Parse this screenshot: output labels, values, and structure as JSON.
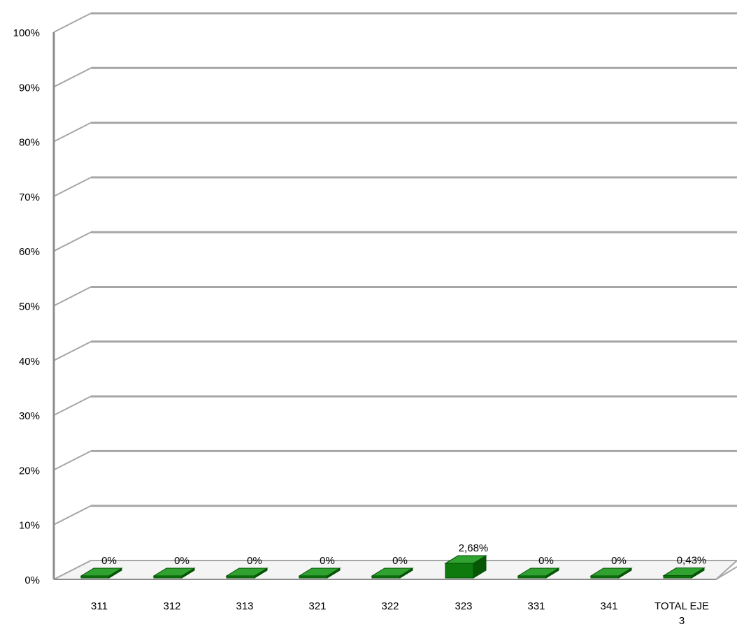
{
  "chart_data": {
    "type": "bar",
    "style": "3d",
    "categories": [
      "311",
      "312",
      "313",
      "321",
      "322",
      "323",
      "331",
      "341",
      "TOTAL EJE 3"
    ],
    "series": [
      {
        "values": [
          0,
          0,
          0,
          0,
          0,
          2.68,
          0,
          0,
          0.43
        ],
        "data_labels": [
          "0%",
          "0%",
          "0%",
          "0%",
          "0%",
          "2,68%",
          "0%",
          "0%",
          "0,43%"
        ]
      }
    ],
    "yticks": [
      "0%",
      "10%",
      "20%",
      "30%",
      "40%",
      "50%",
      "60%",
      "70%",
      "80%",
      "90%",
      "100%"
    ],
    "ylim": [
      0,
      100
    ],
    "grid": true,
    "legend": "none",
    "colors": {
      "bar_front": "#0e7a0e",
      "bar_top": "#2fa22f",
      "bar_side": "#075707",
      "gridline": "#a6a6a6",
      "axis": "#8c8c8c",
      "text": "#000000"
    }
  }
}
